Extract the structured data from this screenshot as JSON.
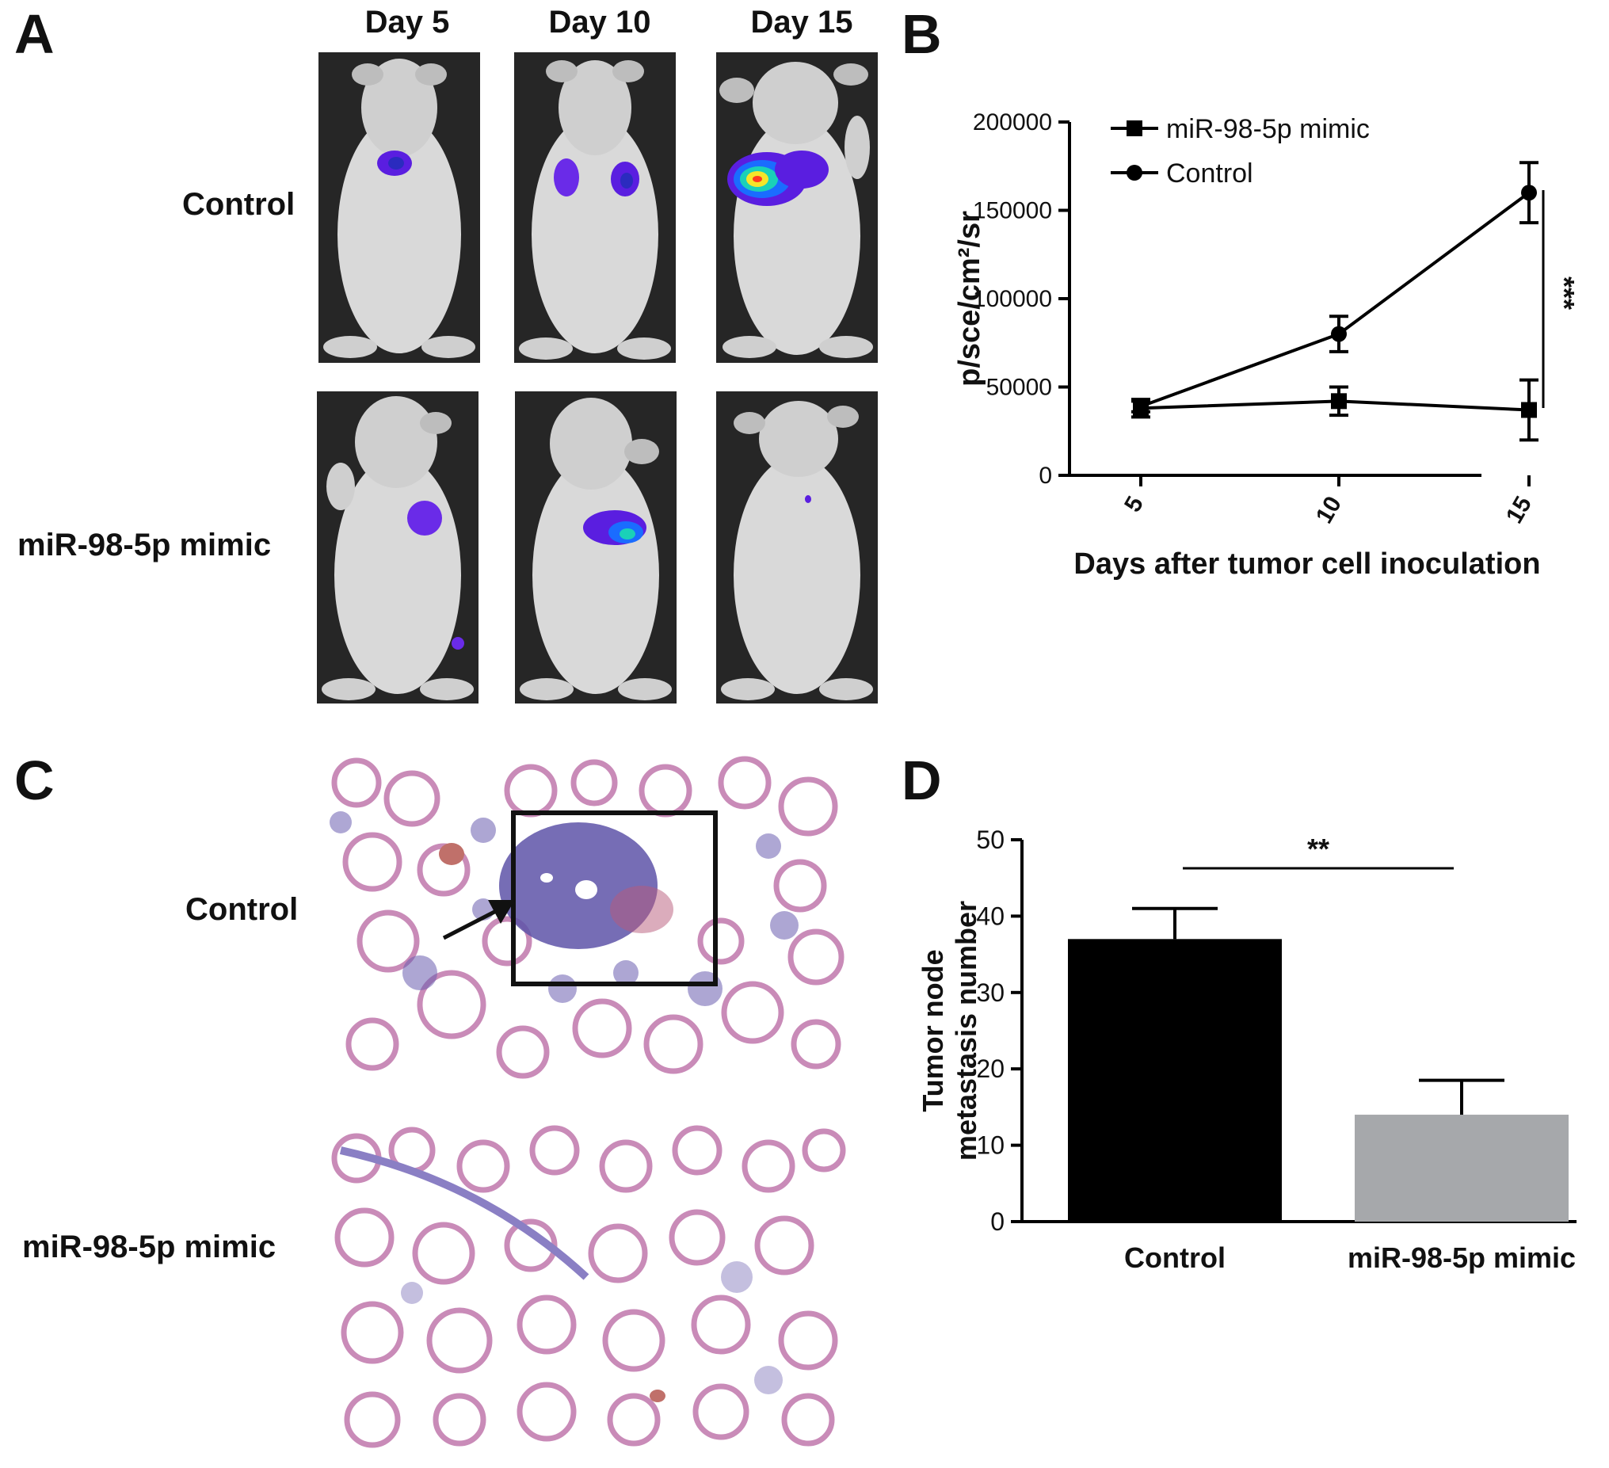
{
  "panels": {
    "a": {
      "letter": "A",
      "columns": [
        "Day 5",
        "Day 10",
        "Day 15"
      ],
      "rows": [
        "Control",
        "miR-98-5p mimic"
      ]
    },
    "b": {
      "letter": "B"
    },
    "c": {
      "letter": "C",
      "rows": [
        "Control",
        "miR-98-5p mimic"
      ]
    },
    "d": {
      "letter": "D"
    }
  },
  "colors": {
    "control": "#000000",
    "mimic": "#a6a8ab",
    "mouse_bg": "#262626",
    "tissue_pink": "#e9b4c6",
    "tissue_purple": "#6b5fb0"
  },
  "chart_data": [
    {
      "panel": "B",
      "type": "line",
      "x": [
        5,
        10,
        15
      ],
      "xlabel": "Days after tumor cell inoculation",
      "ylabel": "p/sce/cm²/sr",
      "ylim": [
        0,
        200000
      ],
      "yticks": [
        "0",
        "50000",
        "100000",
        "150000",
        "200000"
      ],
      "xticks": [
        "5",
        "10",
        "15"
      ],
      "series": [
        {
          "name": "miR-98-5p mimic",
          "marker": "square",
          "values": [
            38000,
            42000,
            37000
          ],
          "errors": [
            5000,
            8000,
            17000
          ]
        },
        {
          "name": "Control",
          "marker": "circle",
          "values": [
            39000,
            80000,
            160000
          ],
          "errors": [
            3000,
            10000,
            17000
          ]
        }
      ],
      "legend": "top-left",
      "annotation": "***",
      "grid": false
    },
    {
      "panel": "D",
      "type": "bar",
      "categories": [
        "Control",
        "miR-98-5p mimic"
      ],
      "values": [
        37,
        14
      ],
      "errors": [
        4,
        4.5
      ],
      "ylabel": "Tumor node metastasis number",
      "ylim": [
        0,
        50
      ],
      "yticks": [
        "0",
        "10",
        "20",
        "30",
        "40",
        "50"
      ],
      "annotation": "**",
      "grid": false
    }
  ]
}
